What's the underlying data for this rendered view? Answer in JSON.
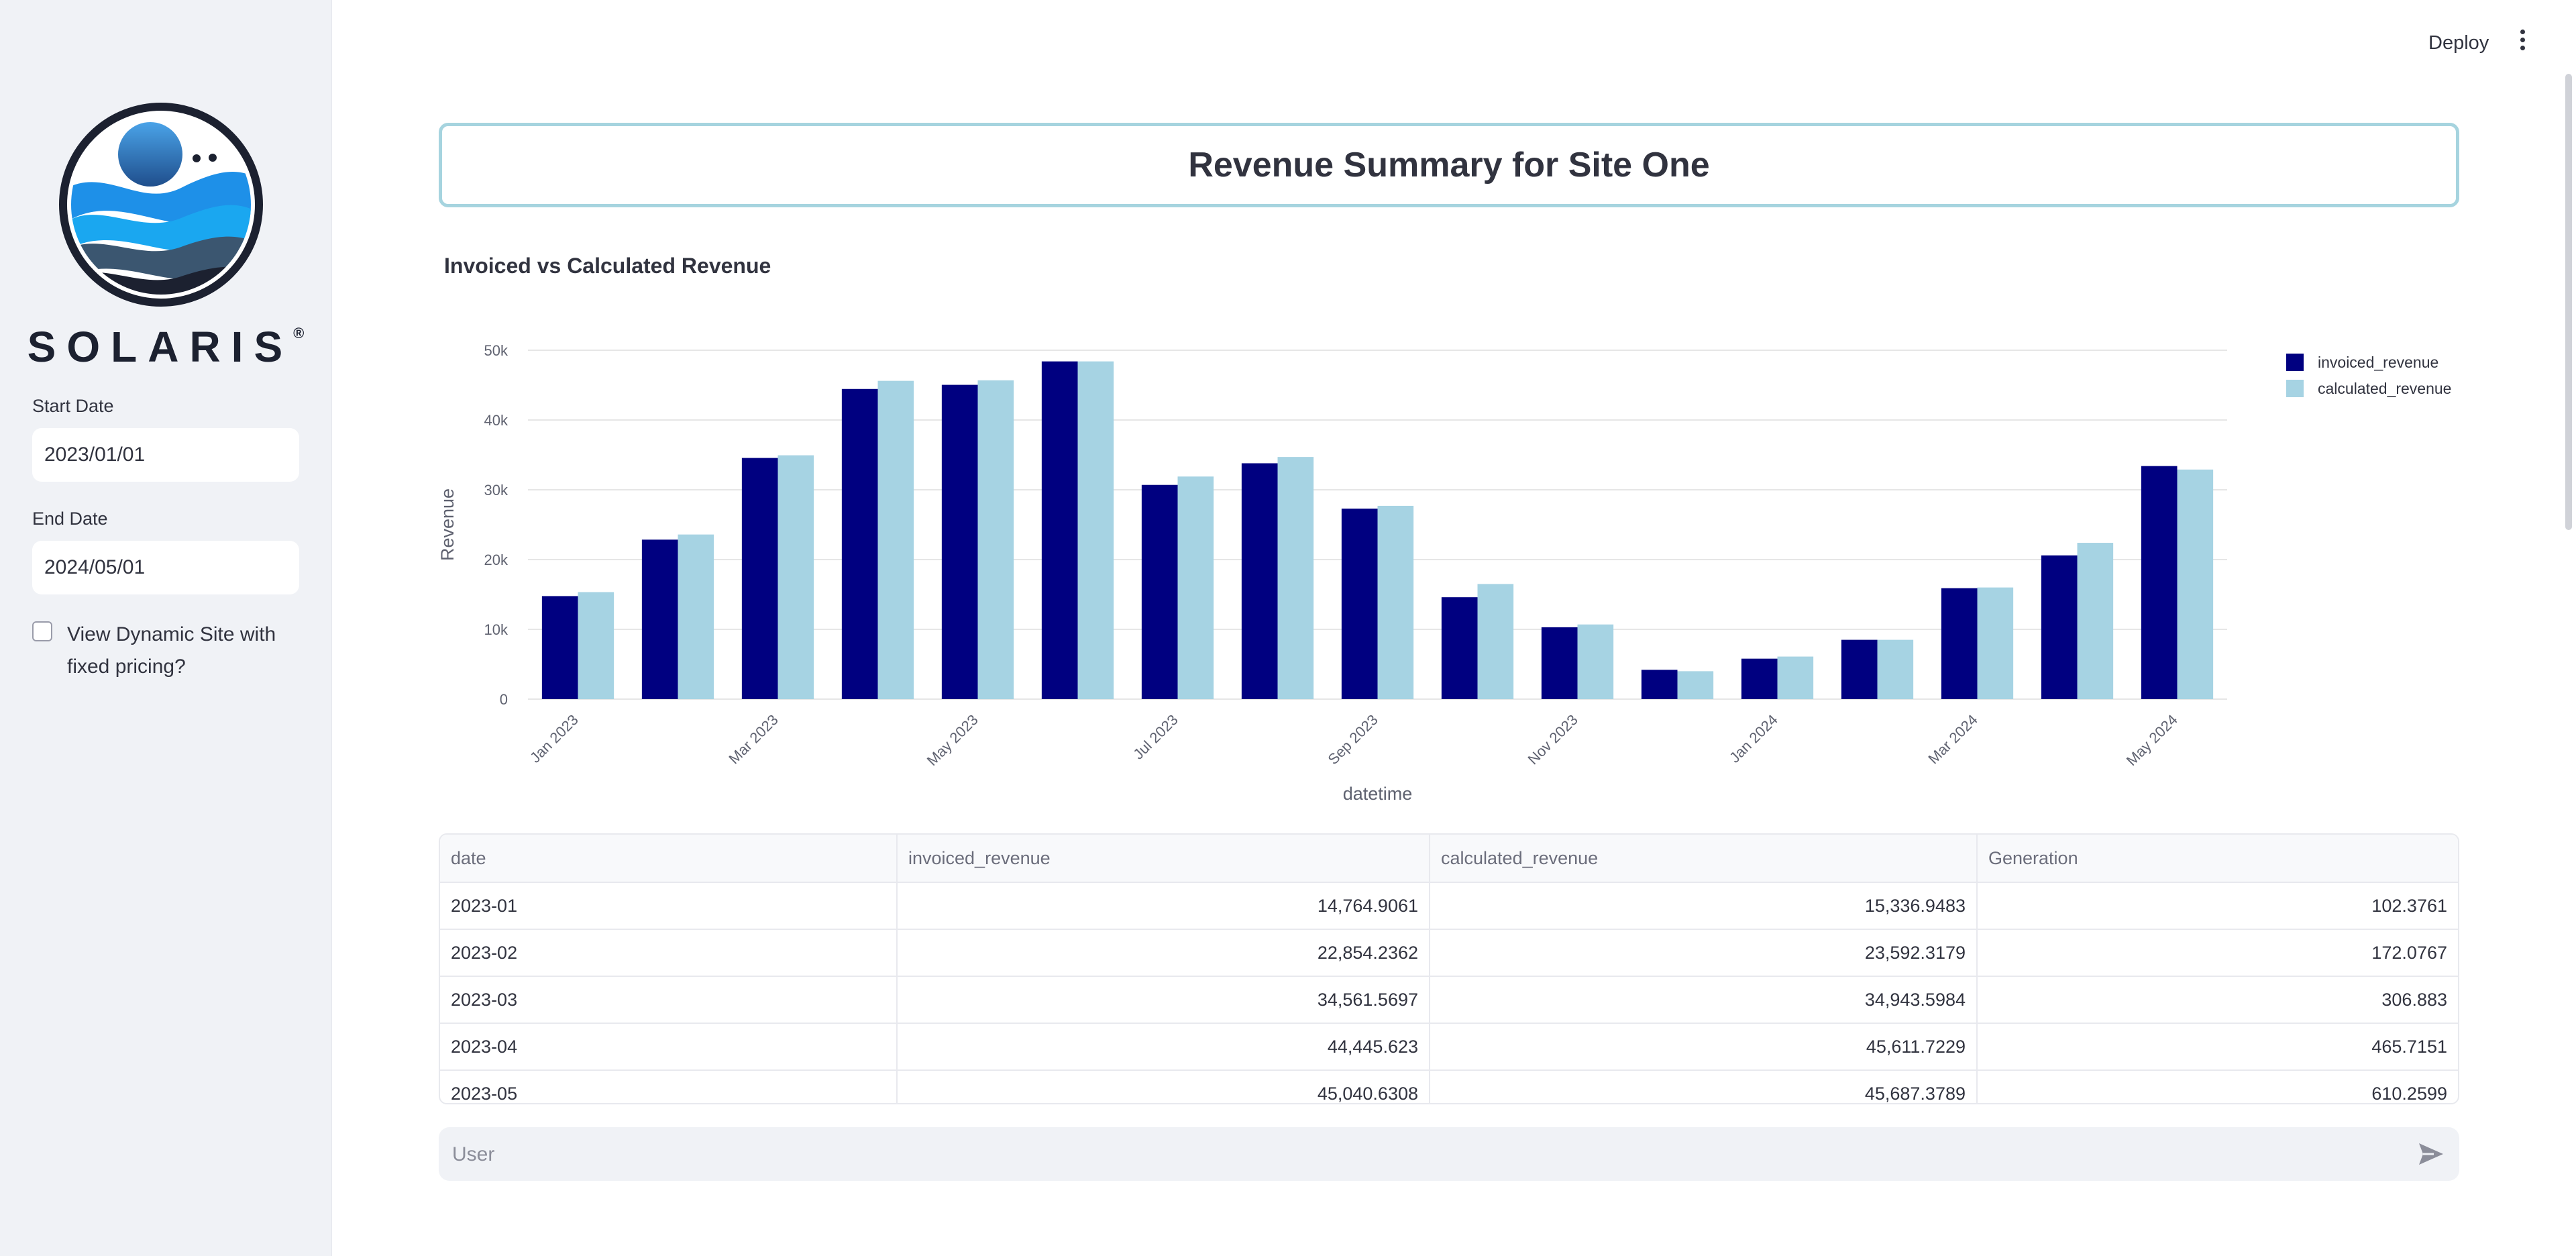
{
  "header": {
    "deploy_label": "Deploy"
  },
  "sidebar": {
    "brand": "SOLARIS",
    "brand_mark": "®",
    "start_date": {
      "label": "Start Date",
      "value": "2023/01/01"
    },
    "end_date": {
      "label": "End Date",
      "value": "2024/05/01"
    },
    "checkbox": {
      "label": "View Dynamic Site with fixed pricing?",
      "checked": false
    }
  },
  "main": {
    "title": "Revenue Summary for Site One",
    "chart_heading": "Invoiced vs Calculated Revenue",
    "chat_placeholder": "User"
  },
  "colors": {
    "invoiced": "#000080",
    "calculated": "#a6d3e3",
    "title_border": "#a6d4df"
  },
  "chart_data": {
    "type": "bar",
    "xlabel": "datetime",
    "ylabel": "Revenue",
    "ylim": [
      0,
      50000
    ],
    "yticks": [
      0,
      10000,
      20000,
      30000,
      40000,
      50000
    ],
    "ytick_labels": [
      "0",
      "10k",
      "20k",
      "30k",
      "40k",
      "50k"
    ],
    "categories": [
      "2023-01",
      "2023-02",
      "2023-03",
      "2023-04",
      "2023-05",
      "2023-06",
      "2023-07",
      "2023-08",
      "2023-09",
      "2023-10",
      "2023-11",
      "2023-12",
      "2024-01",
      "2024-02",
      "2024-03",
      "2024-04",
      "2024-05"
    ],
    "xtick_labels": [
      "Jan 2023",
      "Mar 2023",
      "May 2023",
      "Jul 2023",
      "Sep 2023",
      "Nov 2023",
      "Jan 2024",
      "Mar 2024",
      "May 2024"
    ],
    "xtick_positions": [
      "2023-01",
      "2023-03",
      "2023-05",
      "2023-07",
      "2023-09",
      "2023-11",
      "2024-01",
      "2024-03",
      "2024-05"
    ],
    "series": [
      {
        "name": "invoiced_revenue",
        "color": "#000080",
        "values": [
          14764.9061,
          22854.2362,
          34561.5697,
          44445.623,
          45040.6308,
          48400,
          30700,
          33800,
          27300,
          14600,
          10300,
          4200,
          5800,
          8500,
          15900,
          20600,
          33400
        ]
      },
      {
        "name": "calculated_revenue",
        "color": "#a6d3e3",
        "values": [
          15336.9483,
          23592.3179,
          34943.5984,
          45611.7229,
          45687.3789,
          48400,
          31900,
          34700,
          27700,
          16500,
          10700,
          4000,
          6100,
          8500,
          16000,
          22400,
          32900
        ]
      }
    ],
    "legend": "top-right",
    "grid": true
  },
  "table": {
    "columns": [
      "date",
      "invoiced_revenue",
      "calculated_revenue",
      "Generation"
    ],
    "rows": [
      [
        "2023-01",
        "14,764.9061",
        "15,336.9483",
        "102.3761"
      ],
      [
        "2023-02",
        "22,854.2362",
        "23,592.3179",
        "172.0767"
      ],
      [
        "2023-03",
        "34,561.5697",
        "34,943.5984",
        "306.883"
      ],
      [
        "2023-04",
        "44,445.623",
        "45,611.7229",
        "465.7151"
      ],
      [
        "2023-05",
        "45,040.6308",
        "45,687.3789",
        "610.2599"
      ]
    ]
  }
}
